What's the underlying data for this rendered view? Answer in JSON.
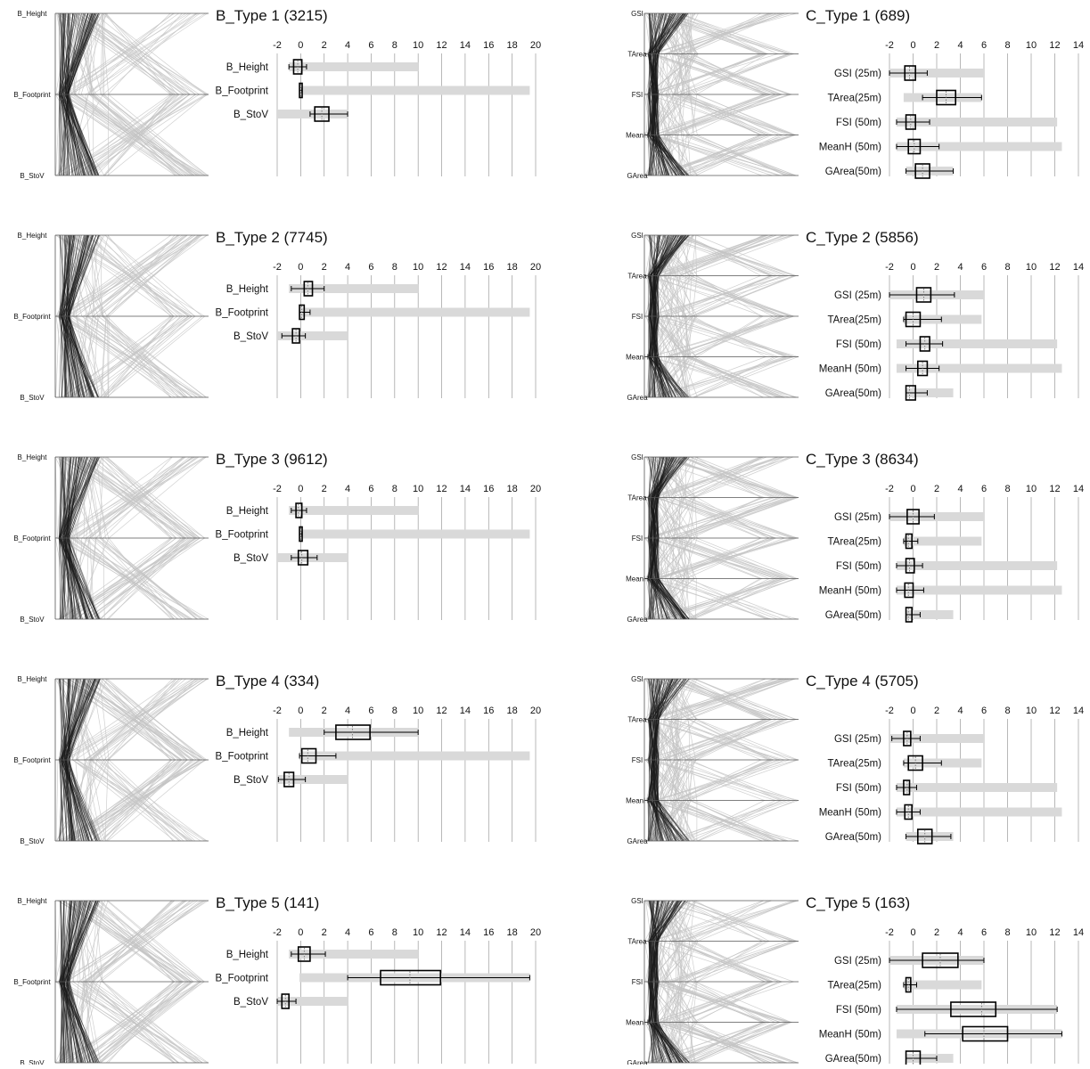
{
  "colors": {
    "line_dark": "#1a1a1a",
    "line_light": "#c4c4c4",
    "range_bar": "#d9d9d9",
    "axis": "#555555",
    "box_stroke": "#000000"
  },
  "chart_data": [
    {
      "type": "boxplot",
      "title": "B_Type 1 (3215)",
      "axis_ticks": [
        "-2",
        "0",
        "2",
        "4",
        "6",
        "8",
        "10",
        "12",
        "14",
        "16",
        "18",
        "20"
      ],
      "xlim": [
        -2,
        20
      ],
      "pcp_axes": [
        "B_Height",
        "B_Footprint",
        "B_StoV"
      ],
      "variables": [
        {
          "label": "B_Height",
          "range": [
            -1,
            10
          ],
          "whisker": [
            -1,
            0.5
          ],
          "box": [
            -0.6,
            0.1
          ],
          "median": -0.25
        },
        {
          "label": "B_Footprint",
          "range": [
            -0.1,
            19.5
          ],
          "whisker": [
            -0.1,
            0.1
          ],
          "box": [
            -0.1,
            0.05
          ],
          "median": 0
        },
        {
          "label": "B_StoV",
          "range": [
            -2,
            4
          ],
          "whisker": [
            0.8,
            4
          ],
          "box": [
            1.2,
            2.4
          ],
          "median": 1.8
        }
      ]
    },
    {
      "type": "boxplot",
      "title": "C_Type 1 (689)",
      "axis_ticks": [
        "-2",
        "0",
        "2",
        "4",
        "6",
        "8",
        "10",
        "12",
        "14"
      ],
      "xlim": [
        -2,
        14
      ],
      "pcp_axes": [
        "GSI",
        "TArea",
        "FSI",
        "MeanH",
        "GArea"
      ],
      "variables": [
        {
          "label": "GSI (25m)",
          "range": [
            -2,
            6
          ],
          "whisker": [
            -2,
            1.2
          ],
          "box": [
            -0.7,
            0.2
          ],
          "median": -0.3
        },
        {
          "label": "TArea(25m)",
          "range": [
            -0.8,
            5.8
          ],
          "whisker": [
            0.8,
            5.8
          ],
          "box": [
            2,
            3.6
          ],
          "median": 2.8
        },
        {
          "label": "FSI (50m)",
          "range": [
            -1.4,
            12.2
          ],
          "whisker": [
            -1.4,
            1.4
          ],
          "box": [
            -0.6,
            0.2
          ],
          "median": -0.2
        },
        {
          "label": "MeanH (50m)",
          "range": [
            -1.4,
            12.6
          ],
          "whisker": [
            -1.4,
            2.2
          ],
          "box": [
            -0.4,
            0.6
          ],
          "median": 0.1
        },
        {
          "label": "GArea(50m)",
          "range": [
            -0.6,
            3.4
          ],
          "whisker": [
            -0.6,
            3.4
          ],
          "box": [
            0.2,
            1.4
          ],
          "median": 0.8
        }
      ]
    },
    {
      "type": "boxplot",
      "title": "B_Type 2 (7745)",
      "axis_ticks": [
        "-2",
        "0",
        "2",
        "4",
        "6",
        "8",
        "10",
        "12",
        "14",
        "16",
        "18",
        "20"
      ],
      "xlim": [
        -2,
        20
      ],
      "pcp_axes": [
        "B_Height",
        "B_Footprint",
        "B_StoV"
      ],
      "variables": [
        {
          "label": "B_Height",
          "range": [
            -1,
            10
          ],
          "whisker": [
            -0.8,
            2
          ],
          "box": [
            0.3,
            1
          ],
          "median": 0.6
        },
        {
          "label": "B_Footprint",
          "range": [
            -0.1,
            19.5
          ],
          "whisker": [
            -0.1,
            0.8
          ],
          "box": [
            -0.1,
            0.3
          ],
          "median": 0.1
        },
        {
          "label": "B_StoV",
          "range": [
            -2,
            4
          ],
          "whisker": [
            -1.6,
            0.4
          ],
          "box": [
            -0.7,
            -0.1
          ],
          "median": -0.4
        }
      ]
    },
    {
      "type": "boxplot",
      "title": "C_Type 2 (5856)",
      "axis_ticks": [
        "-2",
        "0",
        "2",
        "4",
        "6",
        "8",
        "10",
        "12",
        "14"
      ],
      "xlim": [
        -2,
        14
      ],
      "pcp_axes": [
        "GSI",
        "TArea",
        "FSI",
        "MeanH",
        "GArea"
      ],
      "variables": [
        {
          "label": "GSI (25m)",
          "range": [
            -2,
            6
          ],
          "whisker": [
            -2,
            3.5
          ],
          "box": [
            0.3,
            1.5
          ],
          "median": 0.9
        },
        {
          "label": "TArea(25m)",
          "range": [
            -0.8,
            5.8
          ],
          "whisker": [
            -0.8,
            2.4
          ],
          "box": [
            -0.6,
            0.6
          ],
          "median": 0
        },
        {
          "label": "FSI (50m)",
          "range": [
            -1.4,
            12.2
          ],
          "whisker": [
            -0.6,
            2.5
          ],
          "box": [
            0.6,
            1.4
          ],
          "median": 1
        },
        {
          "label": "MeanH (50m)",
          "range": [
            -1.4,
            12.6
          ],
          "whisker": [
            -0.6,
            2.2
          ],
          "box": [
            0.4,
            1.2
          ],
          "median": 0.8
        },
        {
          "label": "GArea(50m)",
          "range": [
            -0.6,
            3.4
          ],
          "whisker": [
            -0.6,
            1.2
          ],
          "box": [
            -0.6,
            0.2
          ],
          "median": -0.3
        }
      ]
    },
    {
      "type": "boxplot",
      "title": "B_Type 3 (9612)",
      "axis_ticks": [
        "-2",
        "0",
        "2",
        "4",
        "6",
        "8",
        "10",
        "12",
        "14",
        "16",
        "18",
        "20"
      ],
      "xlim": [
        -2,
        20
      ],
      "pcp_axes": [
        "B_Height",
        "B_Footprint",
        "B_StoV"
      ],
      "variables": [
        {
          "label": "B_Height",
          "range": [
            -1,
            10
          ],
          "whisker": [
            -0.8,
            0.5
          ],
          "box": [
            -0.4,
            0.1
          ],
          "median": -0.2
        },
        {
          "label": "B_Footprint",
          "range": [
            -0.1,
            19.5
          ],
          "whisker": [
            -0.1,
            0.1
          ],
          "box": [
            -0.1,
            0.05
          ],
          "median": 0
        },
        {
          "label": "B_StoV",
          "range": [
            -2,
            4
          ],
          "whisker": [
            -0.8,
            1.4
          ],
          "box": [
            -0.2,
            0.6
          ],
          "median": 0.1
        }
      ]
    },
    {
      "type": "boxplot",
      "title": "C_Type 3 (8634)",
      "axis_ticks": [
        "-2",
        "0",
        "2",
        "4",
        "6",
        "8",
        "10",
        "12",
        "14"
      ],
      "xlim": [
        -2,
        14
      ],
      "pcp_axes": [
        "GSI",
        "TArea",
        "FSI",
        "MeanH",
        "GArea"
      ],
      "variables": [
        {
          "label": "GSI (25m)",
          "range": [
            -2,
            6
          ],
          "whisker": [
            -2,
            1.8
          ],
          "box": [
            -0.5,
            0.5
          ],
          "median": 0
        },
        {
          "label": "TArea(25m)",
          "range": [
            -0.8,
            5.8
          ],
          "whisker": [
            -0.8,
            0.4
          ],
          "box": [
            -0.6,
            -0.1
          ],
          "median": -0.4
        },
        {
          "label": "FSI (50m)",
          "range": [
            -1.4,
            12.2
          ],
          "whisker": [
            -1.4,
            0.8
          ],
          "box": [
            -0.6,
            0.1
          ],
          "median": -0.3
        },
        {
          "label": "MeanH (50m)",
          "range": [
            -1.4,
            12.6
          ],
          "whisker": [
            -1.4,
            0.9
          ],
          "box": [
            -0.7,
            0
          ],
          "median": -0.4
        },
        {
          "label": "GArea(50m)",
          "range": [
            -0.6,
            3.4
          ],
          "whisker": [
            -0.6,
            0.6
          ],
          "box": [
            -0.6,
            -0.1
          ],
          "median": -0.4
        }
      ]
    },
    {
      "type": "boxplot",
      "title": "B_Type 4 (334)",
      "axis_ticks": [
        "-2",
        "0",
        "2",
        "4",
        "6",
        "8",
        "10",
        "12",
        "14",
        "16",
        "18",
        "20"
      ],
      "xlim": [
        -2,
        20
      ],
      "pcp_axes": [
        "B_Height",
        "B_Footprint",
        "B_StoV"
      ],
      "variables": [
        {
          "label": "B_Height",
          "range": [
            -1,
            10
          ],
          "whisker": [
            2,
            10
          ],
          "box": [
            3,
            5.9
          ],
          "median": 4.4
        },
        {
          "label": "B_Footprint",
          "range": [
            -0.1,
            19.5
          ],
          "whisker": [
            -0.1,
            3
          ],
          "box": [
            0.1,
            1.3
          ],
          "median": 0.6
        },
        {
          "label": "B_StoV",
          "range": [
            -2,
            4
          ],
          "whisker": [
            -1.9,
            0.4
          ],
          "box": [
            -1.4,
            -0.6
          ],
          "median": -1
        }
      ]
    },
    {
      "type": "boxplot",
      "title": "C_Type 4 (5705)",
      "axis_ticks": [
        "-2",
        "0",
        "2",
        "4",
        "6",
        "8",
        "10",
        "12",
        "14"
      ],
      "xlim": [
        -2,
        14
      ],
      "pcp_axes": [
        "GSI",
        "TArea",
        "FSI",
        "MeanH",
        "GArea"
      ],
      "variables": [
        {
          "label": "GSI (25m)",
          "range": [
            -2,
            6
          ],
          "whisker": [
            -1.8,
            0.6
          ],
          "box": [
            -0.8,
            -0.2
          ],
          "median": -0.5
        },
        {
          "label": "TArea(25m)",
          "range": [
            -0.8,
            5.8
          ],
          "whisker": [
            -0.8,
            2.4
          ],
          "box": [
            -0.4,
            0.8
          ],
          "median": 0.2
        },
        {
          "label": "FSI (50m)",
          "range": [
            -1.4,
            12.2
          ],
          "whisker": [
            -1.4,
            0.3
          ],
          "box": [
            -0.8,
            -0.3
          ],
          "median": -0.5
        },
        {
          "label": "MeanH (50m)",
          "range": [
            -1.4,
            12.6
          ],
          "whisker": [
            -1.4,
            0.6
          ],
          "box": [
            -0.7,
            -0.1
          ],
          "median": -0.4
        },
        {
          "label": "GArea(50m)",
          "range": [
            -0.6,
            3.4
          ],
          "whisker": [
            -0.6,
            3.2
          ],
          "box": [
            0.4,
            1.6
          ],
          "median": 1
        }
      ]
    },
    {
      "type": "boxplot",
      "title": "B_Type 5 (141)",
      "axis_ticks": [
        "-2",
        "0",
        "2",
        "4",
        "6",
        "8",
        "10",
        "12",
        "14",
        "16",
        "18",
        "20"
      ],
      "xlim": [
        -2,
        20
      ],
      "pcp_axes": [
        "B_Height",
        "B_Footprint",
        "B_StoV"
      ],
      "variables": [
        {
          "label": "B_Height",
          "range": [
            -1,
            10
          ],
          "whisker": [
            -0.8,
            2.1
          ],
          "box": [
            -0.2,
            0.8
          ],
          "median": 0.3
        },
        {
          "label": "B_Footprint",
          "range": [
            -0.1,
            19.5
          ],
          "whisker": [
            4,
            19.5
          ],
          "box": [
            6.8,
            11.9
          ],
          "median": 9.3
        },
        {
          "label": "B_StoV",
          "range": [
            -2,
            4
          ],
          "whisker": [
            -2,
            -0.4
          ],
          "box": [
            -1.6,
            -1
          ],
          "median": -1.3
        }
      ]
    },
    {
      "type": "boxplot",
      "title": "C_Type 5 (163)",
      "axis_ticks": [
        "-2",
        "0",
        "2",
        "4",
        "6",
        "8",
        "10",
        "12",
        "14"
      ],
      "xlim": [
        -2,
        14
      ],
      "pcp_axes": [
        "GSI",
        "TArea",
        "FSI",
        "MeanH",
        "GArea"
      ],
      "variables": [
        {
          "label": "GSI (25m)",
          "range": [
            -2,
            6
          ],
          "whisker": [
            -2,
            6
          ],
          "box": [
            0.8,
            3.8
          ],
          "median": 2.3
        },
        {
          "label": "TArea(25m)",
          "range": [
            -0.8,
            5.8
          ],
          "whisker": [
            -0.8,
            0.3
          ],
          "box": [
            -0.6,
            -0.2
          ],
          "median": -0.4
        },
        {
          "label": "FSI (50m)",
          "range": [
            -1.4,
            12.2
          ],
          "whisker": [
            -1.4,
            12.2
          ],
          "box": [
            3.2,
            7
          ],
          "median": 5.8
        },
        {
          "label": "MeanH (50m)",
          "range": [
            -1.4,
            12.6
          ],
          "whisker": [
            1,
            12.6
          ],
          "box": [
            4.2,
            8
          ],
          "median": 6
        },
        {
          "label": "GArea(50m)",
          "range": [
            -0.6,
            3.4
          ],
          "whisker": [
            -0.6,
            2
          ],
          "box": [
            -0.6,
            0.6
          ],
          "median": 0
        }
      ]
    }
  ]
}
